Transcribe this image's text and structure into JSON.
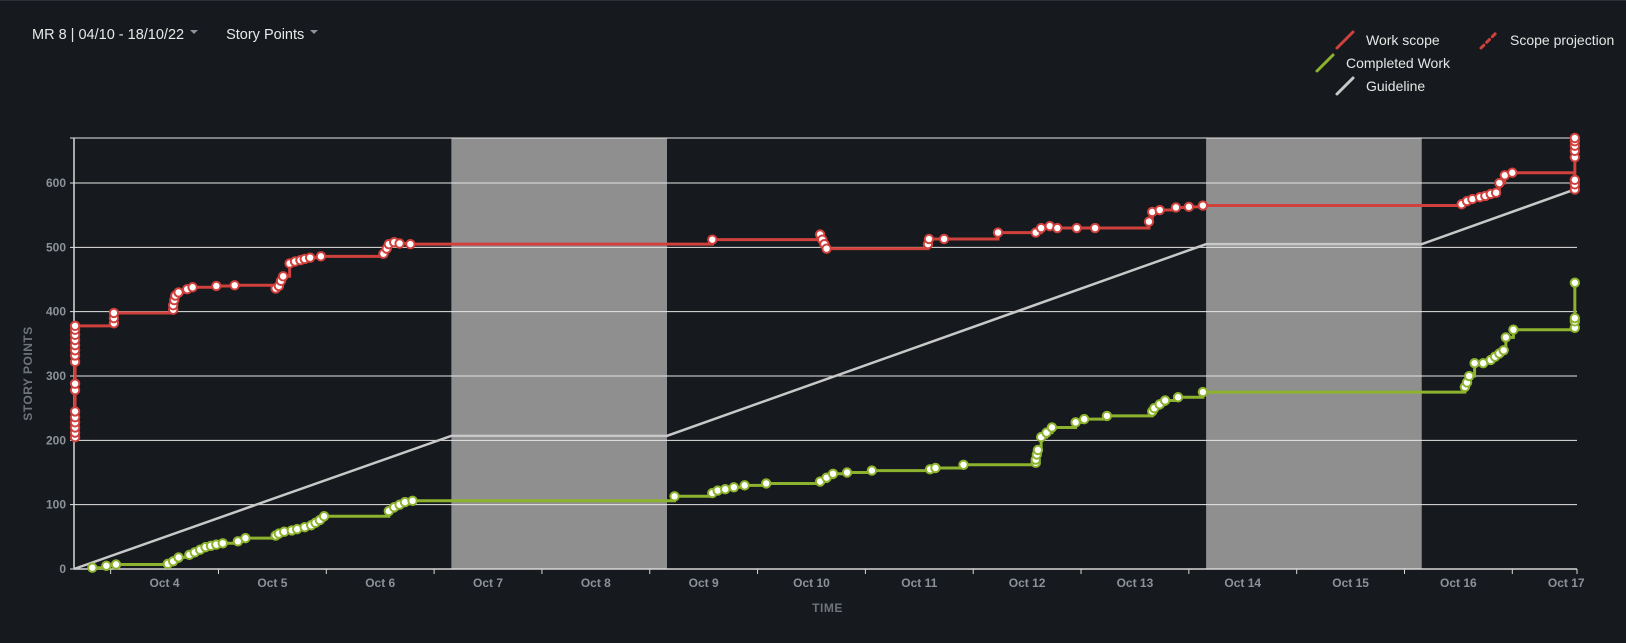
{
  "toolbar": {
    "sprint_label": "MR 8 | 04/10 - 18/10/22",
    "metric_label": "Story Points"
  },
  "legend": [
    {
      "key": "work_scope",
      "label": "Work scope",
      "color": "#d0413d",
      "dashed": false
    },
    {
      "key": "scope_projection",
      "label": "Scope projection",
      "color": "#d0413d",
      "dashed": true
    },
    {
      "key": "completed_work",
      "label": "Completed Work",
      "color": "#8db32e",
      "dashed": false
    },
    {
      "key": "guideline",
      "label": "Guideline",
      "color": "#c8c8c8",
      "dashed": false
    }
  ],
  "colors": {
    "background": "#16191d",
    "gridline": "#e6e6e6",
    "non_working_band": "#8f8f8f",
    "work_scope": "#d0413d",
    "completed_work": "#8db32e",
    "guideline": "#c8c8c8"
  },
  "chart_data": {
    "type": "line",
    "title": "",
    "xlabel": "TIME",
    "ylabel": "STORY POINTS",
    "x_unit": "days (Oct 2022, fractional)",
    "xlim": [
      3.58,
      17.52
    ],
    "ylim": [
      0,
      670
    ],
    "yticks": [
      0,
      100,
      200,
      300,
      400,
      500,
      600
    ],
    "xticks": [
      {
        "x": 4,
        "label": "Oct 4"
      },
      {
        "x": 5,
        "label": "Oct 5"
      },
      {
        "x": 6,
        "label": "Oct 6"
      },
      {
        "x": 7,
        "label": "Oct 7"
      },
      {
        "x": 8,
        "label": "Oct 8"
      },
      {
        "x": 9,
        "label": "Oct 9"
      },
      {
        "x": 10,
        "label": "Oct 10"
      },
      {
        "x": 11,
        "label": "Oct 11"
      },
      {
        "x": 12,
        "label": "Oct 12"
      },
      {
        "x": 13,
        "label": "Oct 13"
      },
      {
        "x": 14,
        "label": "Oct 14"
      },
      {
        "x": 15,
        "label": "Oct 15"
      },
      {
        "x": 16,
        "label": "Oct 16"
      },
      {
        "x": 17,
        "label": "Oct 17"
      }
    ],
    "non_working_periods": [
      [
        7.08,
        9.08
      ],
      [
        14.08,
        16.08
      ]
    ],
    "grid": true,
    "legend_position": "top-right",
    "series": [
      {
        "name": "Work scope",
        "step": true,
        "points": [
          [
            3.59,
            205
          ],
          [
            3.59,
            212
          ],
          [
            3.59,
            220
          ],
          [
            3.59,
            228
          ],
          [
            3.59,
            236
          ],
          [
            3.59,
            245
          ],
          [
            3.59,
            278
          ],
          [
            3.59,
            288
          ],
          [
            3.59,
            322
          ],
          [
            3.59,
            332
          ],
          [
            3.59,
            340
          ],
          [
            3.59,
            348
          ],
          [
            3.59,
            356
          ],
          [
            3.59,
            364
          ],
          [
            3.59,
            372
          ],
          [
            3.59,
            378
          ],
          [
            3.95,
            382
          ],
          [
            3.95,
            390
          ],
          [
            3.95,
            398
          ],
          [
            4.5,
            403
          ],
          [
            4.5,
            410
          ],
          [
            4.51,
            418
          ],
          [
            4.52,
            425
          ],
          [
            4.55,
            430
          ],
          [
            4.63,
            435
          ],
          [
            4.68,
            438
          ],
          [
            4.9,
            440
          ],
          [
            5.07,
            441
          ],
          [
            5.45,
            436
          ],
          [
            5.48,
            440
          ],
          [
            5.5,
            448
          ],
          [
            5.52,
            455
          ],
          [
            5.58,
            475
          ],
          [
            5.63,
            478
          ],
          [
            5.68,
            480
          ],
          [
            5.72,
            482
          ],
          [
            5.77,
            484
          ],
          [
            5.87,
            486
          ],
          [
            6.45,
            490
          ],
          [
            6.48,
            498
          ],
          [
            6.5,
            505
          ],
          [
            6.55,
            508
          ],
          [
            6.6,
            506
          ],
          [
            6.7,
            505
          ],
          [
            9.5,
            512
          ],
          [
            10.5,
            520
          ],
          [
            10.52,
            512
          ],
          [
            10.54,
            505
          ],
          [
            10.56,
            498
          ],
          [
            11.5,
            505
          ],
          [
            11.51,
            513
          ],
          [
            11.65,
            513
          ],
          [
            12.15,
            523
          ],
          [
            12.5,
            523
          ],
          [
            12.55,
            530
          ],
          [
            12.63,
            533
          ],
          [
            12.7,
            530
          ],
          [
            12.88,
            530
          ],
          [
            13.05,
            530
          ],
          [
            13.55,
            540
          ],
          [
            13.58,
            555
          ],
          [
            13.65,
            558
          ],
          [
            13.8,
            562
          ],
          [
            13.92,
            563
          ],
          [
            14.05,
            565
          ],
          [
            16.45,
            567
          ],
          [
            16.5,
            572
          ],
          [
            16.55,
            575
          ],
          [
            16.62,
            578
          ],
          [
            16.67,
            580
          ],
          [
            16.72,
            583
          ],
          [
            16.77,
            585
          ],
          [
            16.8,
            600
          ],
          [
            16.85,
            612
          ],
          [
            16.92,
            616
          ],
          [
            17.5,
            590
          ],
          [
            17.5,
            598
          ],
          [
            17.5,
            605
          ],
          [
            17.5,
            640
          ],
          [
            17.5,
            650
          ],
          [
            17.5,
            658
          ],
          [
            17.5,
            665
          ],
          [
            17.5,
            670
          ]
        ]
      },
      {
        "name": "Completed Work",
        "step": true,
        "points": [
          [
            3.75,
            2
          ],
          [
            3.88,
            5
          ],
          [
            3.97,
            7
          ],
          [
            4.45,
            8
          ],
          [
            4.5,
            12
          ],
          [
            4.55,
            18
          ],
          [
            4.65,
            22
          ],
          [
            4.7,
            26
          ],
          [
            4.75,
            30
          ],
          [
            4.8,
            34
          ],
          [
            4.85,
            36
          ],
          [
            4.9,
            38
          ],
          [
            4.96,
            40
          ],
          [
            5.1,
            43
          ],
          [
            5.17,
            48
          ],
          [
            5.45,
            52
          ],
          [
            5.48,
            55
          ],
          [
            5.53,
            58
          ],
          [
            5.6,
            60
          ],
          [
            5.65,
            62
          ],
          [
            5.72,
            65
          ],
          [
            5.78,
            68
          ],
          [
            5.82,
            72
          ],
          [
            5.86,
            76
          ],
          [
            5.9,
            82
          ],
          [
            6.5,
            90
          ],
          [
            6.55,
            96
          ],
          [
            6.6,
            100
          ],
          [
            6.65,
            104
          ],
          [
            6.72,
            106
          ],
          [
            9.15,
            113
          ],
          [
            9.5,
            118
          ],
          [
            9.55,
            122
          ],
          [
            9.62,
            124
          ],
          [
            9.7,
            127
          ],
          [
            9.8,
            130
          ],
          [
            10.0,
            133
          ],
          [
            10.5,
            136
          ],
          [
            10.56,
            142
          ],
          [
            10.62,
            148
          ],
          [
            10.75,
            150
          ],
          [
            10.98,
            153
          ],
          [
            11.52,
            155
          ],
          [
            11.57,
            157
          ],
          [
            11.83,
            162
          ],
          [
            12.5,
            165
          ],
          [
            12.5,
            170
          ],
          [
            12.51,
            178
          ],
          [
            12.52,
            185
          ],
          [
            12.55,
            205
          ],
          [
            12.6,
            212
          ],
          [
            12.65,
            220
          ],
          [
            12.87,
            228
          ],
          [
            12.95,
            233
          ],
          [
            13.16,
            238
          ],
          [
            13.58,
            245
          ],
          [
            13.6,
            250
          ],
          [
            13.65,
            256
          ],
          [
            13.7,
            262
          ],
          [
            13.82,
            267
          ],
          [
            14.05,
            275
          ],
          [
            16.48,
            283
          ],
          [
            16.5,
            290
          ],
          [
            16.52,
            300
          ],
          [
            16.57,
            320
          ],
          [
            16.65,
            320
          ],
          [
            16.72,
            325
          ],
          [
            16.76,
            330
          ],
          [
            16.8,
            335
          ],
          [
            16.84,
            340
          ],
          [
            16.86,
            360
          ],
          [
            16.93,
            372
          ],
          [
            17.5,
            375
          ],
          [
            17.5,
            385
          ],
          [
            17.5,
            390
          ],
          [
            17.5,
            445
          ]
        ]
      },
      {
        "name": "Guideline",
        "step": false,
        "points": [
          [
            3.58,
            0
          ],
          [
            7.08,
            207
          ],
          [
            9.08,
            207
          ],
          [
            14.08,
            505
          ],
          [
            16.08,
            505
          ],
          [
            17.5,
            590
          ]
        ]
      }
    ]
  }
}
